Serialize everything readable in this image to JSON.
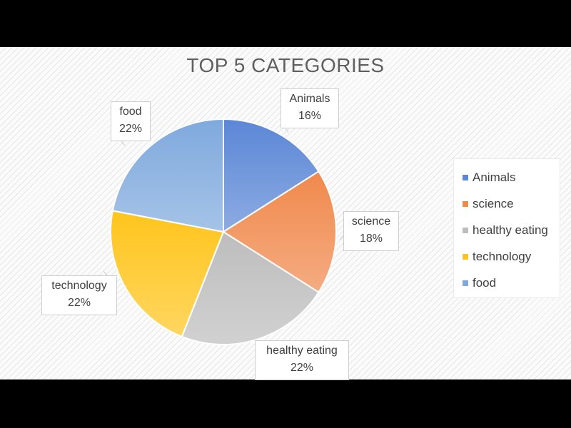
{
  "chart_data": {
    "type": "pie",
    "title": "TOP 5 CATEGORIES",
    "categories": [
      "Animals",
      "science",
      "healthy eating",
      "technology",
      "food"
    ],
    "values": [
      16,
      18,
      22,
      22,
      22
    ],
    "value_labels": [
      "16%",
      "18%",
      "22%",
      "22%",
      "22%"
    ],
    "colors": [
      "#5b87d6",
      "#f0894c",
      "#bdbdbd",
      "#ffc51c",
      "#7fa9dd"
    ],
    "legend_position": "right"
  }
}
